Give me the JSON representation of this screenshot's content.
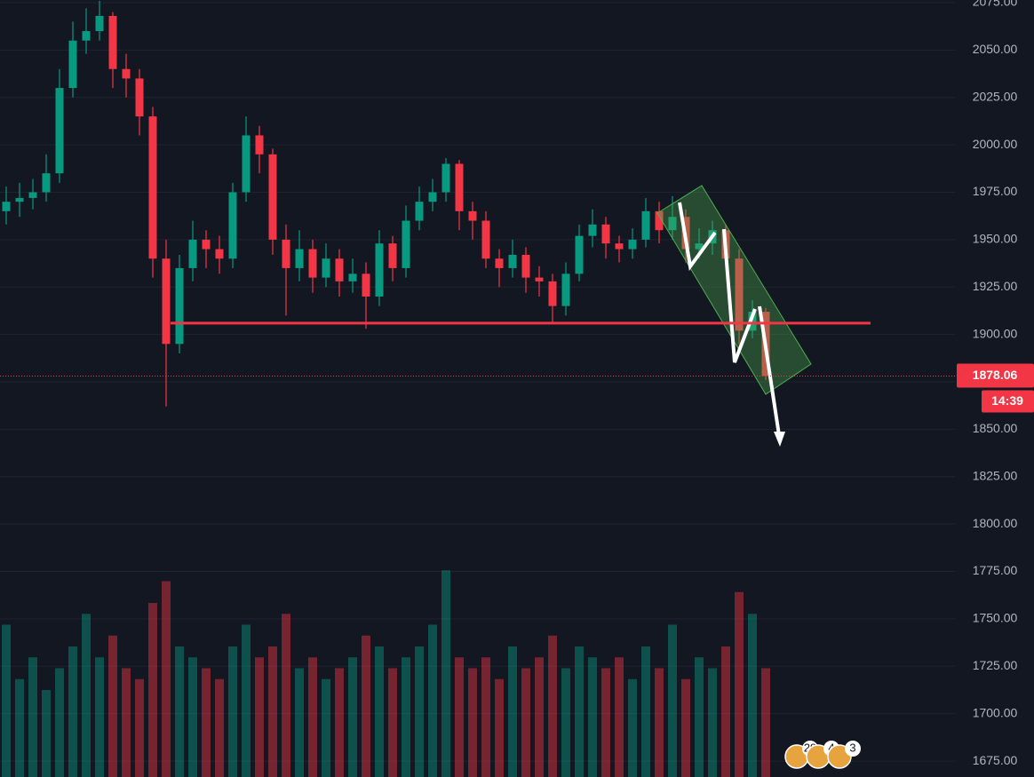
{
  "chart_data": {
    "type": "candlestick",
    "open": [
      1965,
      1970,
      1972,
      1975,
      1985,
      2030,
      2055,
      2060,
      2068,
      2040,
      2035,
      2015,
      1940,
      1895,
      1935,
      1950,
      1945,
      1940,
      1975,
      2005,
      1995,
      1950,
      1935,
      1945,
      1930,
      1940,
      1928,
      1932,
      1920,
      1948,
      1935,
      1960,
      1970,
      1975,
      1990,
      1965,
      1960,
      1940,
      1935,
      1942,
      1930,
      1928,
      1915,
      1932,
      1952,
      1958,
      1948,
      1945,
      1950,
      1965,
      1955,
      1962,
      1945,
      1948,
      1955,
      1940,
      1902,
      1912
    ],
    "high": [
      1978,
      1980,
      1982,
      1995,
      2040,
      2065,
      2072,
      2076,
      2070,
      2048,
      2040,
      2020,
      1950,
      1942,
      1960,
      1955,
      1952,
      1980,
      2015,
      2010,
      1998,
      1958,
      1955,
      1950,
      1948,
      1945,
      1940,
      1938,
      1955,
      1952,
      1968,
      1978,
      1982,
      1993,
      1992,
      1970,
      1965,
      1945,
      1950,
      1946,
      1936,
      1932,
      1938,
      1958,
      1966,
      1962,
      1952,
      1956,
      1972,
      1970,
      1973,
      1966,
      1956,
      1960,
      1958,
      1945,
      1918,
      1914
    ],
    "low": [
      1958,
      1962,
      1966,
      1970,
      1980,
      2025,
      2048,
      2055,
      2030,
      2025,
      2005,
      1930,
      1862,
      1890,
      1928,
      1935,
      1932,
      1935,
      1970,
      1985,
      1942,
      1910,
      1928,
      1922,
      1925,
      1920,
      1922,
      1903,
      1915,
      1928,
      1930,
      1955,
      1965,
      1970,
      1955,
      1950,
      1935,
      1925,
      1930,
      1922,
      1920,
      1906,
      1910,
      1928,
      1946,
      1940,
      1938,
      1940,
      1946,
      1948,
      1950,
      1938,
      1940,
      1942,
      1935,
      1895,
      1898,
      1876
    ],
    "close": [
      1970,
      1972,
      1975,
      1985,
      2030,
      2055,
      2060,
      2068,
      2040,
      2035,
      2015,
      1940,
      1895,
      1935,
      1950,
      1945,
      1940,
      1975,
      2005,
      1995,
      1950,
      1935,
      1945,
      1930,
      1940,
      1928,
      1932,
      1920,
      1948,
      1935,
      1960,
      1970,
      1975,
      1990,
      1965,
      1960,
      1940,
      1935,
      1942,
      1930,
      1928,
      1915,
      1932,
      1952,
      1958,
      1948,
      1945,
      1950,
      1965,
      1955,
      1962,
      1945,
      1948,
      1955,
      1940,
      1902,
      1912,
      1878.06
    ],
    "volume": [
      70,
      45,
      55,
      40,
      50,
      60,
      75,
      55,
      65,
      50,
      45,
      80,
      90,
      60,
      55,
      50,
      45,
      60,
      70,
      55,
      60,
      75,
      50,
      55,
      45,
      50,
      55,
      65,
      60,
      50,
      55,
      60,
      70,
      95,
      55,
      50,
      55,
      45,
      60,
      50,
      55,
      65,
      50,
      60,
      55,
      50,
      55,
      45,
      60,
      50,
      70,
      45,
      55,
      50,
      60,
      85,
      75,
      50
    ],
    "ylim": [
      1666.6,
      2076.4
    ],
    "vlim": [
      0,
      100
    ],
    "yticks": [
      {
        "value": 1675,
        "label": "1675.00"
      },
      {
        "value": 1700,
        "label": "1700.00"
      },
      {
        "value": 1725,
        "label": "1725.00"
      },
      {
        "value": 1750,
        "label": "1750.00"
      },
      {
        "value": 1775,
        "label": "1775.00"
      },
      {
        "value": 1800,
        "label": "1800.00"
      },
      {
        "value": 1825,
        "label": "1825.00"
      },
      {
        "value": 1850,
        "label": "1850.00"
      },
      {
        "value": 1875,
        "label": "1875.00"
      },
      {
        "value": 1900,
        "label": "1900.00"
      },
      {
        "value": 1925,
        "label": "1925.00"
      },
      {
        "value": 1950,
        "label": "1950.00"
      },
      {
        "value": 1975,
        "label": "1975.00"
      },
      {
        "value": 2000,
        "label": "2000.00"
      },
      {
        "value": 2025,
        "label": "2025.00"
      },
      {
        "value": 2050,
        "label": "2050.00"
      },
      {
        "value": 2075,
        "label": "2075.00"
      }
    ],
    "support_level": 1906,
    "countdown": "14:39",
    "events": [
      "29",
      "4",
      "3"
    ],
    "up_color": "#089981",
    "down_color": "#f23645",
    "grid": true
  }
}
